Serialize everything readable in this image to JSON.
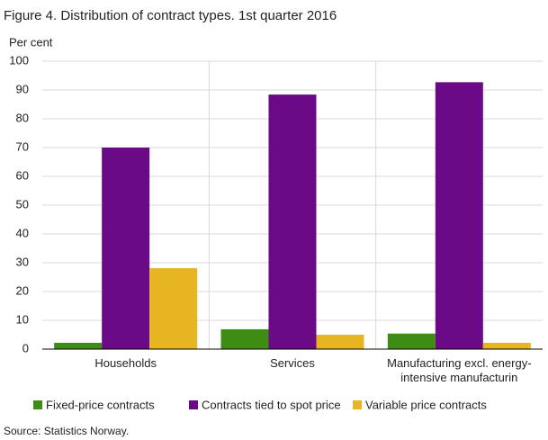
{
  "chart_data": {
    "type": "bar",
    "title": "Figure 4. Distribution of contract types. 1st quarter 2016",
    "y_label": "Per cent",
    "source": "Source: Statistics Norway.",
    "categories": [
      "Households",
      "Services",
      "Manufacturing excl. energy-intensive manufacturin"
    ],
    "series": [
      {
        "name": "Fixed-price contracts",
        "color": "#3f8c14",
        "values": [
          2.2,
          6.9,
          5.4
        ]
      },
      {
        "name": "Contracts tied to spot price",
        "color": "#6a0a86",
        "values": [
          70,
          88.4,
          92.7
        ]
      },
      {
        "name": "Variable price contracts",
        "color": "#e7b522",
        "values": [
          28.1,
          5,
          2.2
        ]
      }
    ],
    "ylim": [
      0,
      100
    ],
    "yticks": [
      0,
      10,
      20,
      30,
      40,
      50,
      60,
      70,
      80,
      90,
      100
    ],
    "grid": true
  }
}
